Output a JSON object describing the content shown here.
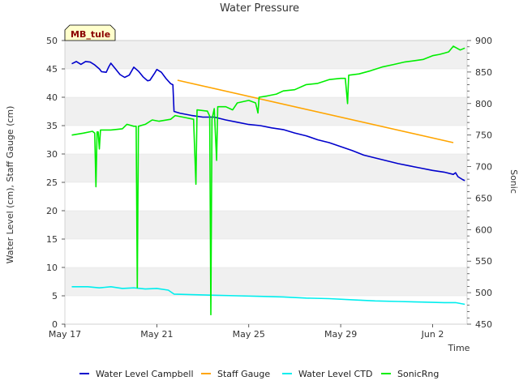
{
  "chart_data": {
    "type": "line",
    "title": "Water Pressure",
    "xlabel": "Time",
    "ylabel": "Water Level (cm), Staff Gauge (cm)",
    "y2label": "Sonic",
    "annotation": "MB_tule",
    "x_ticks": [
      "May 17",
      "May 21",
      "May 25",
      "May 29",
      "Jun 2"
    ],
    "x_tick_days": [
      0,
      4,
      8,
      12,
      16
    ],
    "xlim_days": [
      0,
      17.5
    ],
    "ylim": [
      0,
      50
    ],
    "y_ticks": [
      0,
      5,
      10,
      15,
      20,
      25,
      30,
      35,
      40,
      45,
      50
    ],
    "y2lim": [
      450,
      900
    ],
    "y2_ticks": [
      450,
      500,
      550,
      600,
      650,
      700,
      750,
      800,
      850,
      900
    ],
    "grid_bands": true,
    "legend_position": "bottom",
    "series": [
      {
        "name": "Water Level Campbell",
        "color": "#0000cc",
        "axis": "left",
        "points": [
          [
            0.3,
            45.9
          ],
          [
            0.5,
            46.3
          ],
          [
            0.7,
            45.8
          ],
          [
            0.9,
            46.3
          ],
          [
            1.1,
            46.2
          ],
          [
            1.3,
            45.7
          ],
          [
            1.5,
            45.0
          ],
          [
            1.6,
            44.5
          ],
          [
            1.8,
            44.4
          ],
          [
            1.9,
            45.3
          ],
          [
            2.0,
            46.0
          ],
          [
            2.2,
            45.0
          ],
          [
            2.4,
            44.0
          ],
          [
            2.6,
            43.5
          ],
          [
            2.8,
            43.9
          ],
          [
            3.0,
            45.3
          ],
          [
            3.2,
            44.6
          ],
          [
            3.4,
            43.6
          ],
          [
            3.6,
            42.9
          ],
          [
            3.7,
            43.0
          ],
          [
            3.9,
            44.2
          ],
          [
            4.0,
            44.9
          ],
          [
            4.2,
            44.4
          ],
          [
            4.4,
            43.3
          ],
          [
            4.6,
            42.4
          ],
          [
            4.7,
            42.2
          ],
          [
            4.75,
            37.5
          ],
          [
            5.0,
            37.2
          ],
          [
            5.5,
            36.8
          ],
          [
            6.0,
            36.5
          ],
          [
            6.5,
            36.5
          ],
          [
            7.0,
            36.0
          ],
          [
            7.5,
            35.6
          ],
          [
            8.0,
            35.2
          ],
          [
            8.5,
            35.0
          ],
          [
            9.0,
            34.6
          ],
          [
            9.5,
            34.3
          ],
          [
            10.0,
            33.7
          ],
          [
            10.5,
            33.2
          ],
          [
            11.0,
            32.5
          ],
          [
            11.5,
            32.0
          ],
          [
            12.0,
            31.3
          ],
          [
            12.5,
            30.6
          ],
          [
            13.0,
            29.8
          ],
          [
            13.5,
            29.3
          ],
          [
            14.0,
            28.8
          ],
          [
            14.5,
            28.3
          ],
          [
            15.0,
            27.9
          ],
          [
            15.5,
            27.5
          ],
          [
            16.0,
            27.1
          ],
          [
            16.5,
            26.8
          ],
          [
            16.9,
            26.4
          ],
          [
            17.0,
            26.7
          ],
          [
            17.1,
            26.0
          ],
          [
            17.3,
            25.5
          ],
          [
            17.4,
            25.3
          ]
        ]
      },
      {
        "name": "Staff Gauge",
        "color": "#ffa500",
        "axis": "left",
        "points": [
          [
            4.9,
            43.0
          ],
          [
            16.9,
            32.0
          ]
        ]
      },
      {
        "name": "Water Level CTD",
        "color": "#00eeee",
        "axis": "left",
        "points": [
          [
            0.3,
            6.6
          ],
          [
            1.0,
            6.6
          ],
          [
            1.5,
            6.4
          ],
          [
            2.0,
            6.6
          ],
          [
            2.5,
            6.3
          ],
          [
            3.0,
            6.4
          ],
          [
            3.5,
            6.2
          ],
          [
            4.0,
            6.3
          ],
          [
            4.5,
            6.0
          ],
          [
            4.75,
            5.3
          ],
          [
            5.5,
            5.2
          ],
          [
            6.5,
            5.1
          ],
          [
            7.5,
            5.0
          ],
          [
            8.5,
            4.9
          ],
          [
            9.5,
            4.8
          ],
          [
            10.5,
            4.6
          ],
          [
            11.5,
            4.5
          ],
          [
            12.5,
            4.3
          ],
          [
            13.5,
            4.1
          ],
          [
            14.5,
            4.0
          ],
          [
            15.5,
            3.9
          ],
          [
            16.5,
            3.8
          ],
          [
            17.0,
            3.8
          ],
          [
            17.4,
            3.5
          ]
        ]
      },
      {
        "name": "SonicRng",
        "color": "#00ee00",
        "axis": "right",
        "points": [
          [
            0.3,
            750
          ],
          [
            0.8,
            753
          ],
          [
            1.2,
            756
          ],
          [
            1.3,
            753
          ],
          [
            1.35,
            668
          ],
          [
            1.4,
            755
          ],
          [
            1.45,
            755
          ],
          [
            1.5,
            728
          ],
          [
            1.55,
            758
          ],
          [
            2.0,
            758
          ],
          [
            2.5,
            760
          ],
          [
            2.7,
            767
          ],
          [
            3.0,
            764
          ],
          [
            3.1,
            764
          ],
          [
            3.15,
            508
          ],
          [
            3.2,
            764
          ],
          [
            3.5,
            767
          ],
          [
            3.8,
            774
          ],
          [
            4.1,
            772
          ],
          [
            4.6,
            775
          ],
          [
            4.8,
            781
          ],
          [
            5.2,
            778
          ],
          [
            5.6,
            775
          ],
          [
            5.7,
            672
          ],
          [
            5.75,
            790
          ],
          [
            6.2,
            788
          ],
          [
            6.3,
            780
          ],
          [
            6.35,
            465
          ],
          [
            6.4,
            775
          ],
          [
            6.5,
            792
          ],
          [
            6.6,
            710
          ],
          [
            6.65,
            795
          ],
          [
            7.0,
            795
          ],
          [
            7.3,
            790
          ],
          [
            7.5,
            801
          ],
          [
            8.0,
            805
          ],
          [
            8.3,
            801
          ],
          [
            8.4,
            785
          ],
          [
            8.45,
            810
          ],
          [
            8.8,
            812
          ],
          [
            9.2,
            815
          ],
          [
            9.5,
            820
          ],
          [
            10.0,
            822
          ],
          [
            10.5,
            830
          ],
          [
            11.0,
            832
          ],
          [
            11.5,
            838
          ],
          [
            12.0,
            840
          ],
          [
            12.2,
            840
          ],
          [
            12.3,
            800
          ],
          [
            12.35,
            845
          ],
          [
            12.8,
            847
          ],
          [
            13.3,
            852
          ],
          [
            13.8,
            858
          ],
          [
            14.3,
            862
          ],
          [
            14.8,
            866
          ],
          [
            15.2,
            868
          ],
          [
            15.6,
            870
          ],
          [
            16.0,
            876
          ],
          [
            16.3,
            878
          ],
          [
            16.5,
            880
          ],
          [
            16.7,
            882
          ],
          [
            16.9,
            891
          ],
          [
            17.0,
            889
          ],
          [
            17.2,
            885
          ],
          [
            17.4,
            888
          ]
        ]
      }
    ]
  }
}
